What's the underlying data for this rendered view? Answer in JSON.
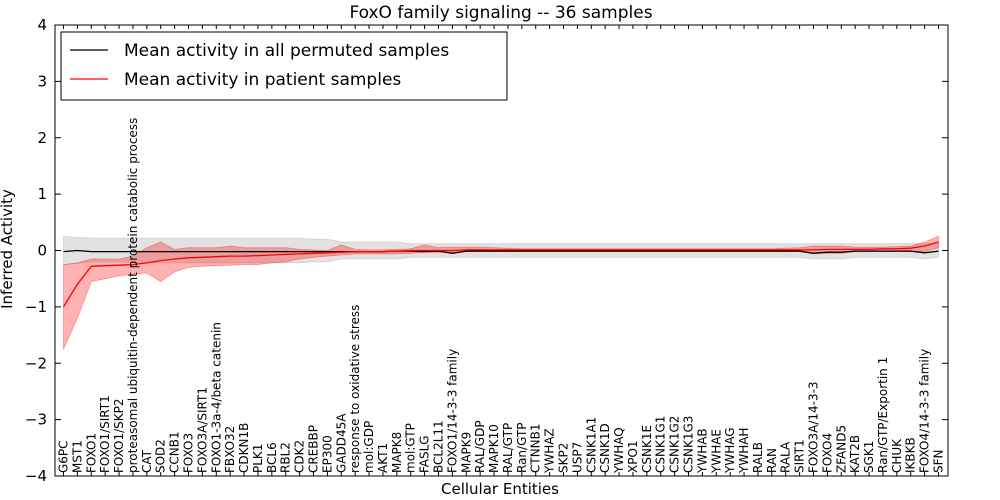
{
  "chart_data": {
    "type": "line",
    "title": "FoxO family signaling -- 36 samples",
    "xlabel": "Cellular Entities",
    "ylabel": "Inferred Activity",
    "ylim": [
      -4,
      4
    ],
    "yticks": [
      -4,
      -3,
      -2,
      -1,
      0,
      1,
      2,
      3,
      4
    ],
    "ytick_labels": [
      "−4",
      "−3",
      "−2",
      "−1",
      "0",
      "1",
      "2",
      "3",
      "4"
    ],
    "legend_position": "upper-left",
    "categories": [
      "G6PC",
      "MST1",
      "FOXO1",
      "FOXO1/SIRT1",
      "FOXO1/SKP2",
      "proteasomal ubiquitin-dependent protein catabolic process",
      "CAT",
      "SOD2",
      "CCNB1",
      "FOXO3",
      "FOXO3A/SIRT1",
      "FOXO1-3a-4/beta catenin",
      "FBXO32",
      "CDKN1B",
      "PLK1",
      "BCL6",
      "RBL2",
      "CDK2",
      "CREBBP",
      "EP300",
      "GADD45A",
      "response to oxidative stress",
      "mol:GDP",
      "AKT1",
      "MAPK8",
      "mol:GTP",
      "FASLG",
      "BCL2L11",
      "FOXO1/14-3-3 family",
      "MAPK9",
      "RAL/GDP",
      "MAPK10",
      "RAL/GTP",
      "Ran/GTP",
      "CTNNB1",
      "YWHAZ",
      "SKP2",
      "USP7",
      "CSNK1A1",
      "CSNK1D",
      "YWHAQ",
      "XPO1",
      "CSNK1E",
      "CSNK1G1",
      "CSNK1G2",
      "CSNK1G3",
      "YWHAB",
      "YWHAE",
      "YWHAG",
      "YWHAH",
      "RALB",
      "RAN",
      "RALA",
      "SIRT1",
      "FOXO3A/14-3-3",
      "FOXO4",
      "ZFAND5",
      "KAT2B",
      "SGK1",
      "Ran/GTP/Exportin 1",
      "CHUK",
      "IKBKB",
      "FOXO4/14-3-3 family",
      "SFN"
    ],
    "series": [
      {
        "name": "Mean activity in all permuted samples",
        "color": "#000000",
        "values": [
          -0.02,
          0.0,
          -0.02,
          -0.02,
          -0.02,
          -0.02,
          -0.02,
          -0.02,
          -0.02,
          -0.02,
          -0.02,
          -0.02,
          -0.02,
          -0.02,
          -0.02,
          -0.02,
          -0.02,
          -0.02,
          -0.02,
          -0.02,
          -0.02,
          -0.02,
          -0.02,
          -0.02,
          -0.01,
          -0.01,
          -0.02,
          -0.01,
          -0.05,
          -0.01,
          -0.01,
          -0.01,
          -0.01,
          -0.01,
          -0.01,
          -0.01,
          -0.01,
          -0.01,
          -0.01,
          -0.01,
          -0.01,
          -0.01,
          -0.01,
          -0.01,
          -0.01,
          -0.01,
          -0.01,
          -0.01,
          -0.01,
          -0.01,
          -0.01,
          -0.01,
          -0.01,
          -0.01,
          -0.05,
          -0.03,
          -0.03,
          -0.01,
          -0.01,
          -0.01,
          -0.01,
          -0.01,
          -0.04,
          -0.01
        ],
        "band_lower": [
          -0.25,
          -0.23,
          -0.2,
          -0.2,
          -0.2,
          -0.22,
          -0.22,
          -0.22,
          -0.22,
          -0.22,
          -0.22,
          -0.22,
          -0.22,
          -0.22,
          -0.22,
          -0.22,
          -0.22,
          -0.22,
          -0.2,
          -0.2,
          -0.15,
          -0.15,
          -0.15,
          -0.15,
          -0.15,
          -0.12,
          -0.12,
          -0.12,
          -0.12,
          -0.12,
          -0.12,
          -0.12,
          -0.12,
          -0.12,
          -0.12,
          -0.12,
          -0.12,
          -0.12,
          -0.12,
          -0.12,
          -0.12,
          -0.12,
          -0.12,
          -0.12,
          -0.12,
          -0.12,
          -0.12,
          -0.12,
          -0.12,
          -0.12,
          -0.12,
          -0.12,
          -0.12,
          -0.12,
          -0.15,
          -0.15,
          -0.15,
          -0.12,
          -0.12,
          -0.12,
          -0.12,
          -0.12,
          -0.15,
          -0.12
        ],
        "band_upper": [
          0.25,
          0.23,
          0.22,
          0.22,
          0.22,
          0.22,
          0.22,
          0.22,
          0.22,
          0.22,
          0.22,
          0.22,
          0.22,
          0.22,
          0.22,
          0.22,
          0.22,
          0.22,
          0.2,
          0.2,
          0.15,
          0.15,
          0.15,
          0.15,
          0.15,
          0.12,
          0.12,
          0.12,
          0.12,
          0.12,
          0.12,
          0.12,
          0.12,
          0.12,
          0.12,
          0.12,
          0.12,
          0.12,
          0.12,
          0.12,
          0.12,
          0.12,
          0.12,
          0.12,
          0.12,
          0.12,
          0.12,
          0.12,
          0.12,
          0.12,
          0.12,
          0.12,
          0.12,
          0.12,
          0.12,
          0.12,
          0.12,
          0.12,
          0.12,
          0.12,
          0.12,
          0.12,
          0.12,
          0.12
        ]
      },
      {
        "name": "Mean activity in patient samples",
        "color": "#ff0000",
        "values": [
          -1.0,
          -0.6,
          -0.28,
          -0.27,
          -0.26,
          -0.25,
          -0.22,
          -0.18,
          -0.15,
          -0.13,
          -0.12,
          -0.11,
          -0.1,
          -0.1,
          -0.09,
          -0.08,
          -0.07,
          -0.06,
          -0.05,
          -0.04,
          -0.03,
          -0.02,
          -0.02,
          -0.02,
          -0.01,
          0.0,
          0.0,
          0.0,
          0.0,
          0.01,
          0.01,
          0.01,
          0.01,
          0.01,
          0.01,
          0.01,
          0.01,
          0.01,
          0.01,
          0.01,
          0.01,
          0.01,
          0.01,
          0.01,
          0.01,
          0.01,
          0.01,
          0.01,
          0.01,
          0.01,
          0.01,
          0.01,
          0.01,
          0.01,
          0.01,
          0.02,
          0.02,
          0.02,
          0.02,
          0.03,
          0.03,
          0.04,
          0.08,
          0.15
        ],
        "band_lower": [
          -1.75,
          -1.2,
          -0.55,
          -0.5,
          -0.45,
          -0.42,
          -0.4,
          -0.55,
          -0.38,
          -0.3,
          -0.28,
          -0.27,
          -0.26,
          -0.25,
          -0.25,
          -0.22,
          -0.2,
          -0.15,
          -0.12,
          -0.1,
          -0.08,
          -0.06,
          -0.06,
          -0.06,
          -0.06,
          -0.05,
          -0.03,
          -0.03,
          -0.03,
          -0.02,
          -0.02,
          -0.02,
          -0.02,
          -0.02,
          -0.02,
          -0.02,
          -0.02,
          -0.02,
          -0.02,
          -0.02,
          -0.02,
          -0.02,
          -0.02,
          -0.02,
          -0.02,
          -0.02,
          -0.02,
          -0.02,
          -0.02,
          -0.02,
          -0.02,
          -0.02,
          -0.02,
          -0.02,
          -0.05,
          -0.05,
          -0.05,
          -0.02,
          -0.02,
          -0.02,
          -0.02,
          -0.02,
          -0.02,
          0.05
        ],
        "band_upper": [
          -0.25,
          -0.22,
          -0.15,
          -0.15,
          -0.15,
          -0.1,
          0.05,
          0.15,
          0.02,
          0.05,
          0.05,
          0.05,
          0.08,
          0.05,
          0.05,
          0.05,
          0.05,
          0.02,
          0.01,
          0.0,
          0.1,
          0.02,
          0.01,
          0.01,
          0.02,
          0.03,
          0.1,
          0.05,
          0.06,
          0.06,
          0.06,
          0.05,
          0.04,
          0.03,
          0.03,
          0.03,
          0.03,
          0.03,
          0.03,
          0.03,
          0.03,
          0.03,
          0.03,
          0.03,
          0.03,
          0.03,
          0.03,
          0.03,
          0.03,
          0.03,
          0.03,
          0.03,
          0.04,
          0.05,
          0.08,
          0.08,
          0.08,
          0.06,
          0.06,
          0.06,
          0.07,
          0.08,
          0.15,
          0.25
        ]
      }
    ]
  }
}
